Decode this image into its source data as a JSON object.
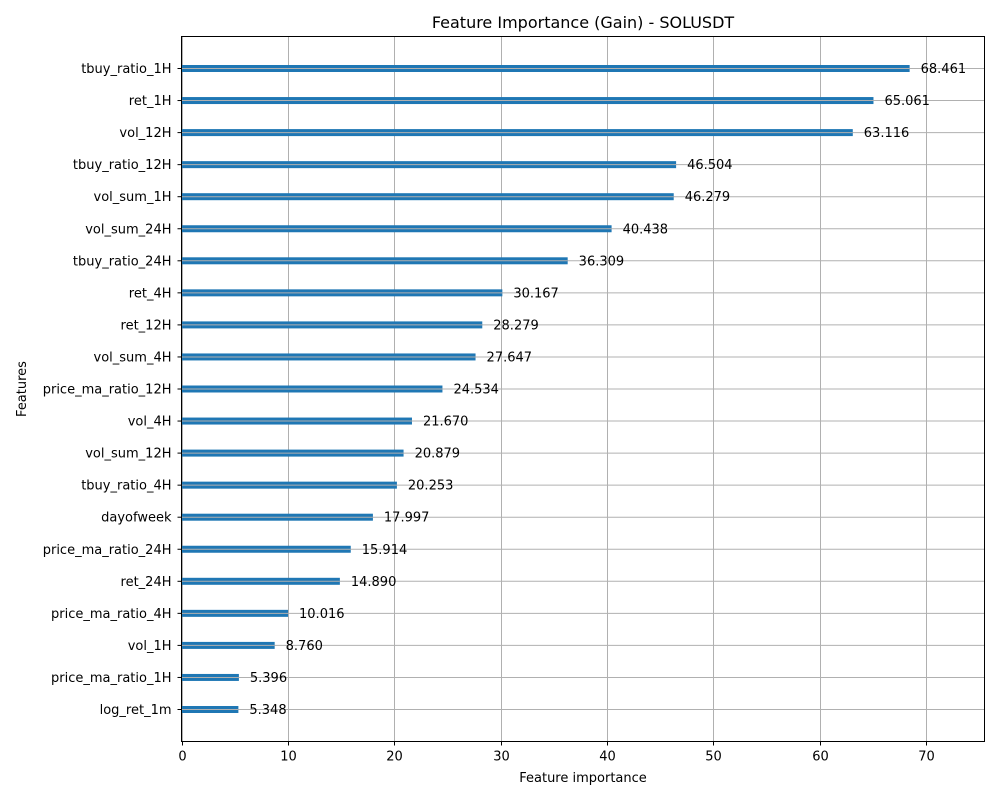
{
  "chart_data": {
    "type": "bar",
    "orientation": "horizontal",
    "title": "Feature Importance (Gain) - SOLUSDT",
    "xlabel": "Feature importance",
    "ylabel": "Features",
    "xlim": [
      0,
      75.5
    ],
    "xticks": [
      0,
      10,
      20,
      30,
      40,
      50,
      60,
      70
    ],
    "grid": true,
    "bar_color": "#1f77b4",
    "categories": [
      "tbuy_ratio_1H",
      "ret_1H",
      "vol_12H",
      "tbuy_ratio_12H",
      "vol_sum_1H",
      "vol_sum_24H",
      "tbuy_ratio_24H",
      "ret_4H",
      "ret_12H",
      "vol_sum_4H",
      "price_ma_ratio_12H",
      "vol_4H",
      "vol_sum_12H",
      "tbuy_ratio_4H",
      "dayofweek",
      "price_ma_ratio_24H",
      "ret_24H",
      "price_ma_ratio_4H",
      "vol_1H",
      "price_ma_ratio_1H",
      "log_ret_1m"
    ],
    "values": [
      68.461,
      65.061,
      63.116,
      46.504,
      46.279,
      40.438,
      36.309,
      30.167,
      28.279,
      27.647,
      24.534,
      21.67,
      20.879,
      20.253,
      17.997,
      15.914,
      14.89,
      10.016,
      8.76,
      5.396,
      5.348
    ],
    "value_labels": [
      "68.461",
      "65.061",
      "63.116",
      "46.504",
      "46.279",
      "40.438",
      "36.309",
      "30.167",
      "28.279",
      "27.647",
      "24.534",
      "21.670",
      "20.879",
      "20.253",
      "17.997",
      "15.914",
      "14.890",
      "10.016",
      "8.760",
      "5.396",
      "5.348"
    ]
  }
}
